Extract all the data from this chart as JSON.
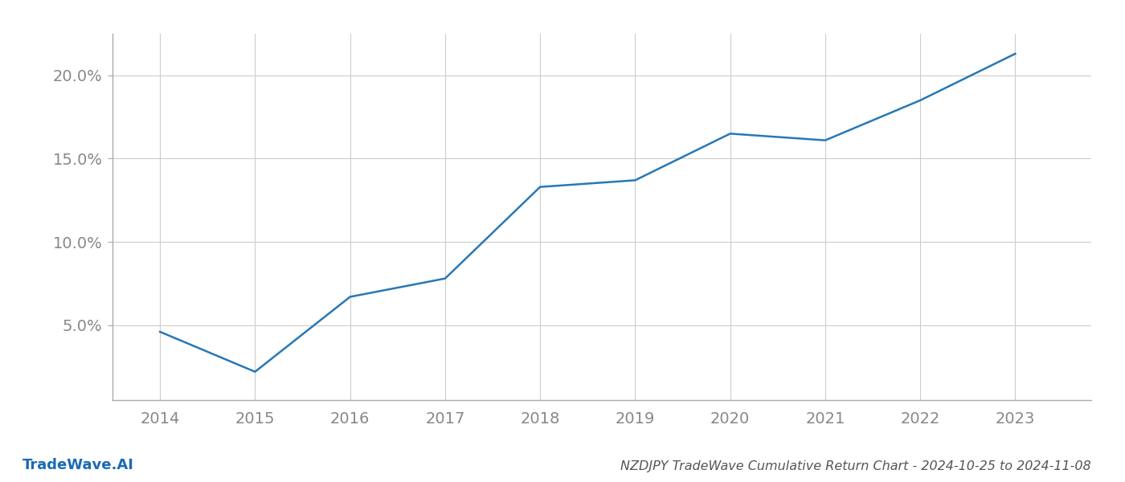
{
  "x_years": [
    2014,
    2015,
    2016,
    2017,
    2018,
    2019,
    2020,
    2021,
    2022,
    2023
  ],
  "y_values": [
    4.6,
    2.2,
    6.7,
    7.8,
    13.3,
    13.7,
    16.5,
    16.1,
    18.5,
    21.3
  ],
  "line_color": "#2878b5",
  "line_width": 1.8,
  "title": "NZDJPY TradeWave Cumulative Return Chart - 2024-10-25 to 2024-11-08",
  "watermark": "TradeWave.AI",
  "background_color": "#ffffff",
  "grid_color": "#cccccc",
  "tick_color": "#888888",
  "watermark_color": "#1a6bb5",
  "title_color": "#555555",
  "xlim": [
    2013.5,
    2023.8
  ],
  "ylim": [
    0.5,
    22.5
  ],
  "yticks": [
    5.0,
    10.0,
    15.0,
    20.0
  ],
  "ytick_labels": [
    "5.0%",
    "10.0%",
    "15.0%",
    "20.0%"
  ],
  "title_fontsize": 11.5,
  "watermark_fontsize": 13,
  "tick_fontsize": 14,
  "spine_color": "#aaaaaa"
}
